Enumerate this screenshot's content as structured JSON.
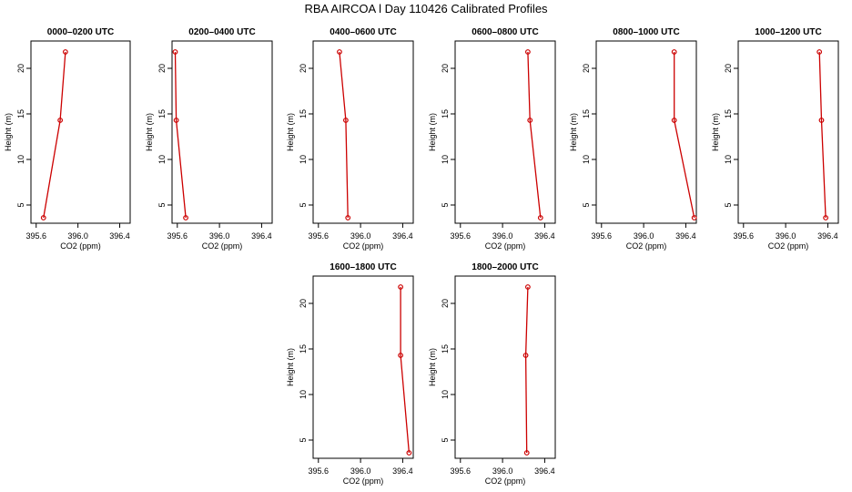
{
  "page": {
    "title": "RBA AIRCOA l  Day 110426  Calibrated Profiles"
  },
  "style": {
    "series_color": "#cc0000",
    "axis_color": "#000000"
  },
  "chart_data": [
    {
      "type": "line",
      "title": "0000–0200 UTC",
      "xlabel": "CO2 (ppm)",
      "ylabel": "Height (m)",
      "xlim": [
        395.55,
        396.5
      ],
      "ylim": [
        3,
        23
      ],
      "xticks": [
        395.6,
        396.0,
        396.4
      ],
      "xtick_labels": [
        "395.6",
        "396.0",
        "396.4"
      ],
      "yticks": [
        5,
        10,
        15,
        20
      ],
      "ytick_labels": [
        "5",
        "10",
        "15",
        "20"
      ],
      "series": [
        {
          "points": [
            {
              "x": 395.67,
              "y": 3.6
            },
            {
              "x": 395.83,
              "y": 14.3
            },
            {
              "x": 395.88,
              "y": 21.8
            }
          ]
        }
      ]
    },
    {
      "type": "line",
      "title": "0200–0400 UTC",
      "xlabel": "CO2 (ppm)",
      "ylabel": "Height (m)",
      "xlim": [
        395.55,
        396.5
      ],
      "ylim": [
        3,
        23
      ],
      "xticks": [
        395.6,
        396.0,
        396.4
      ],
      "xtick_labels": [
        "395.6",
        "396.0",
        "396.4"
      ],
      "yticks": [
        5,
        10,
        15,
        20
      ],
      "ytick_labels": [
        "5",
        "10",
        "15",
        "20"
      ],
      "series": [
        {
          "points": [
            {
              "x": 395.68,
              "y": 3.6
            },
            {
              "x": 395.59,
              "y": 14.3
            },
            {
              "x": 395.58,
              "y": 21.8
            }
          ]
        }
      ]
    },
    {
      "type": "line",
      "title": "0400–0600 UTC",
      "xlabel": "CO2 (ppm)",
      "ylabel": "Height (m)",
      "xlim": [
        395.55,
        396.5
      ],
      "ylim": [
        3,
        23
      ],
      "xticks": [
        395.6,
        396.0,
        396.4
      ],
      "xtick_labels": [
        "395.6",
        "396.0",
        "396.4"
      ],
      "yticks": [
        5,
        10,
        15,
        20
      ],
      "ytick_labels": [
        "5",
        "10",
        "15",
        "20"
      ],
      "series": [
        {
          "points": [
            {
              "x": 395.88,
              "y": 3.6
            },
            {
              "x": 395.86,
              "y": 14.3
            },
            {
              "x": 395.8,
              "y": 21.8
            }
          ]
        }
      ]
    },
    {
      "type": "line",
      "title": "0600–0800 UTC",
      "xlabel": "CO2 (ppm)",
      "ylabel": "Height (m)",
      "xlim": [
        395.55,
        396.5
      ],
      "ylim": [
        3,
        23
      ],
      "xticks": [
        395.6,
        396.0,
        396.4
      ],
      "xtick_labels": [
        "395.6",
        "396.0",
        "396.4"
      ],
      "yticks": [
        5,
        10,
        15,
        20
      ],
      "ytick_labels": [
        "5",
        "10",
        "15",
        "20"
      ],
      "series": [
        {
          "points": [
            {
              "x": 396.36,
              "y": 3.6
            },
            {
              "x": 396.26,
              "y": 14.3
            },
            {
              "x": 396.24,
              "y": 21.8
            }
          ]
        }
      ]
    },
    {
      "type": "line",
      "title": "0800–1000 UTC",
      "xlabel": "CO2 (ppm)",
      "ylabel": "Height (m)",
      "xlim": [
        395.55,
        396.5
      ],
      "ylim": [
        3,
        23
      ],
      "xticks": [
        395.6,
        396.0,
        396.4
      ],
      "xtick_labels": [
        "395.6",
        "396.0",
        "396.4"
      ],
      "yticks": [
        5,
        10,
        15,
        20
      ],
      "ytick_labels": [
        "5",
        "10",
        "15",
        "20"
      ],
      "series": [
        {
          "points": [
            {
              "x": 396.48,
              "y": 3.6
            },
            {
              "x": 396.29,
              "y": 14.3
            },
            {
              "x": 396.29,
              "y": 21.8
            }
          ]
        }
      ]
    },
    {
      "type": "line",
      "title": "1000–1200 UTC",
      "xlabel": "CO2 (ppm)",
      "ylabel": "Height (m)",
      "xlim": [
        395.55,
        396.5
      ],
      "ylim": [
        3,
        23
      ],
      "xticks": [
        395.6,
        396.0,
        396.4
      ],
      "xtick_labels": [
        "395.6",
        "396.0",
        "396.4"
      ],
      "yticks": [
        5,
        10,
        15,
        20
      ],
      "ytick_labels": [
        "5",
        "10",
        "15",
        "20"
      ],
      "series": [
        {
          "points": [
            {
              "x": 396.38,
              "y": 3.6
            },
            {
              "x": 396.34,
              "y": 14.3
            },
            {
              "x": 396.32,
              "y": 21.8
            }
          ]
        }
      ]
    },
    {
      "type": "line",
      "title": "1600–1800 UTC",
      "xlabel": "CO2 (ppm)",
      "ylabel": "Height (m)",
      "xlim": [
        395.55,
        396.5
      ],
      "ylim": [
        3,
        23
      ],
      "xticks": [
        395.6,
        396.0,
        396.4
      ],
      "xtick_labels": [
        "395.6",
        "396.0",
        "396.4"
      ],
      "yticks": [
        5,
        10,
        15,
        20
      ],
      "ytick_labels": [
        "5",
        "10",
        "15",
        "20"
      ],
      "series": [
        {
          "points": [
            {
              "x": 396.46,
              "y": 3.6
            },
            {
              "x": 396.38,
              "y": 14.3
            },
            {
              "x": 396.38,
              "y": 21.8
            }
          ]
        }
      ]
    },
    {
      "type": "line",
      "title": "1800–2000 UTC",
      "xlabel": "CO2 (ppm)",
      "ylabel": "Height (m)",
      "xlim": [
        395.55,
        396.5
      ],
      "ylim": [
        3,
        23
      ],
      "xticks": [
        395.6,
        396.0,
        396.4
      ],
      "xtick_labels": [
        "395.6",
        "396.0",
        "396.4"
      ],
      "yticks": [
        5,
        10,
        15,
        20
      ],
      "ytick_labels": [
        "5",
        "10",
        "15",
        "20"
      ],
      "series": [
        {
          "points": [
            {
              "x": 396.23,
              "y": 3.6
            },
            {
              "x": 396.22,
              "y": 14.3
            },
            {
              "x": 396.24,
              "y": 21.8
            }
          ]
        }
      ]
    }
  ]
}
